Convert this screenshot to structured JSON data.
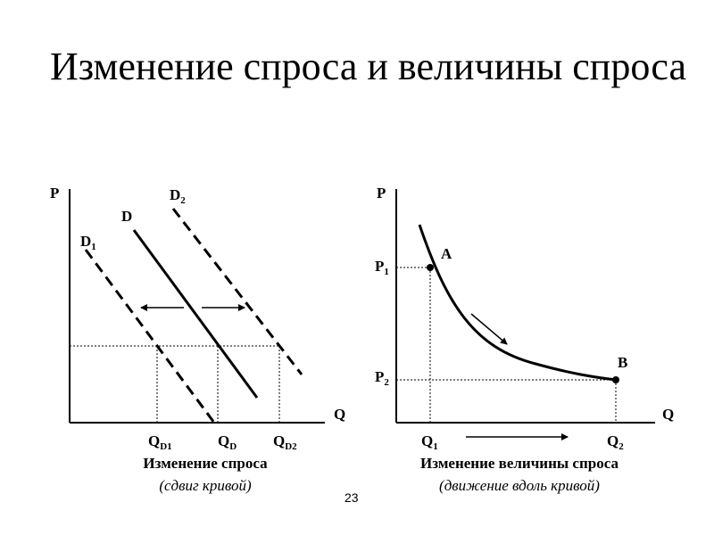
{
  "slide": {
    "title": "Изменение спроса и величины спроса",
    "page_number": "23"
  },
  "left_chart": {
    "y_axis": "P",
    "x_axis": "Q",
    "curves": [
      {
        "name": "D",
        "sub": ""
      },
      {
        "name": "D",
        "sub": "1"
      },
      {
        "name": "D",
        "sub": "2"
      }
    ],
    "ticks": [
      {
        "name": "Q",
        "sub": "D1"
      },
      {
        "name": "Q",
        "sub": "D"
      },
      {
        "name": "Q",
        "sub": "D2"
      }
    ],
    "caption": "Изменение спроса",
    "subcaption": "(сдвиг кривой)"
  },
  "right_chart": {
    "y_axis": "P",
    "x_axis": "Q",
    "points": [
      {
        "label": "A",
        "p": {
          "name": "P",
          "sub": "1"
        },
        "q": {
          "name": "Q",
          "sub": "1"
        }
      },
      {
        "label": "B",
        "p": {
          "name": "P",
          "sub": "2"
        },
        "q": {
          "name": "Q",
          "sub": "2"
        }
      }
    ],
    "caption": "Изменение величины спроса",
    "subcaption": "(движение вдоль кривой)"
  }
}
